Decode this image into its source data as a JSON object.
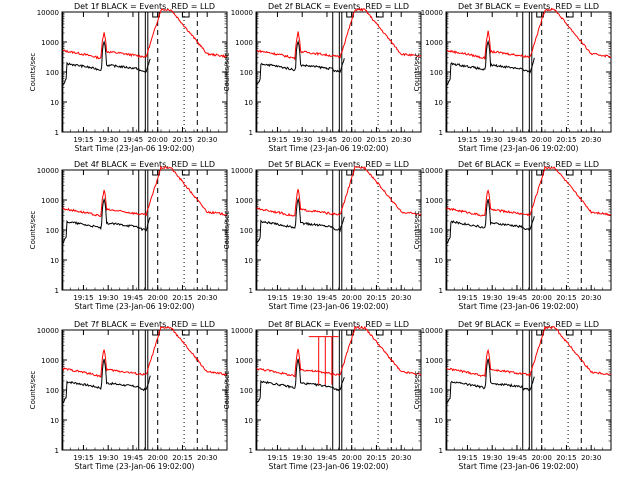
{
  "figure": {
    "ylabel": "Counts/sec",
    "xlabel": "Start Time (23-Jan-06 19:02:00)",
    "series_colors": {
      "events": "#000000",
      "lld": "#ff0000"
    }
  },
  "chart_data": [
    {
      "type": "line",
      "title": "Det 1f BLACK = Events, RED = LLD",
      "xlabel": "Start Time (23-Jan-06 19:02:00)",
      "ylabel": "Counts/sec",
      "x_ticks": [
        "19:15",
        "19:30",
        "19:45",
        "20:00",
        "20:15",
        "20:30"
      ],
      "xlim_min": [
        0,
        100
      ],
      "x_tick_min": [
        13,
        28,
        43,
        58,
        73,
        88
      ],
      "ylim": [
        1,
        10000
      ],
      "y_scale": "log",
      "y_ticks": [
        "1",
        "10",
        "100",
        "1000",
        "10000"
      ],
      "variant": "f"
    },
    {
      "type": "line",
      "title": "Det 2f BLACK = Events, RED = LLD",
      "xlabel": "Start Time (23-Jan-06 19:02:00)",
      "ylabel": "Counts/sec",
      "x_ticks": [
        "19:15",
        "19:30",
        "19:45",
        "20:00",
        "20:15",
        "20:30"
      ],
      "xlim_min": [
        0,
        100
      ],
      "x_tick_min": [
        13,
        28,
        43,
        58,
        73,
        88
      ],
      "ylim": [
        1,
        10000
      ],
      "y_scale": "log",
      "y_ticks": [
        "1",
        "10",
        "100",
        "1000",
        "10000"
      ],
      "variant": "f"
    },
    {
      "type": "line",
      "title": "Det 3f BLACK = Events, RED = LLD",
      "xlabel": "Start Time (23-Jan-06 19:02:00)",
      "ylabel": "Counts/sec",
      "x_ticks": [
        "19:15",
        "19:30",
        "19:45",
        "20:00",
        "20:15",
        "20:30"
      ],
      "xlim_min": [
        0,
        100
      ],
      "x_tick_min": [
        13,
        28,
        43,
        58,
        73,
        88
      ],
      "ylim": [
        1,
        10000
      ],
      "y_scale": "log",
      "y_ticks": [
        "1",
        "10",
        "100",
        "1000",
        "10000"
      ],
      "variant": "f"
    },
    {
      "type": "line",
      "title": "Det 4f BLACK = Events, RED = LLD",
      "xlabel": "Start Time (23-Jan-06 19:02:00)",
      "ylabel": "Counts/sec",
      "x_ticks": [
        "19:15",
        "19:30",
        "19:45",
        "20:00",
        "20:15",
        "20:30"
      ],
      "xlim_min": [
        0,
        100
      ],
      "x_tick_min": [
        13,
        28,
        43,
        58,
        73,
        88
      ],
      "ylim": [
        1,
        10000
      ],
      "y_scale": "log",
      "y_ticks": [
        "1",
        "10",
        "100",
        "1000",
        "10000"
      ],
      "variant": "f"
    },
    {
      "type": "line",
      "title": "Det 5f BLACK = Events, RED = LLD",
      "xlabel": "Start Time (23-Jan-06 19:02:00)",
      "ylabel": "Counts/sec",
      "x_ticks": [
        "19:15",
        "19:30",
        "19:45",
        "20:00",
        "20:15",
        "20:30"
      ],
      "xlim_min": [
        0,
        100
      ],
      "x_tick_min": [
        13,
        28,
        43,
        58,
        73,
        88
      ],
      "ylim": [
        1,
        10000
      ],
      "y_scale": "log",
      "y_ticks": [
        "1",
        "10",
        "100",
        "1000",
        "10000"
      ],
      "variant": "f"
    },
    {
      "type": "line",
      "title": "Det 6f BLACK = Events, RED = LLD",
      "xlabel": "Start Time (23-Jan-06 19:02:00)",
      "ylabel": "Counts/sec",
      "x_ticks": [
        "19:15",
        "19:30",
        "19:45",
        "20:00",
        "20:15",
        "20:30"
      ],
      "xlim_min": [
        0,
        100
      ],
      "x_tick_min": [
        13,
        28,
        43,
        58,
        73,
        88
      ],
      "ylim": [
        1,
        10000
      ],
      "y_scale": "log",
      "y_ticks": [
        "1",
        "10",
        "100",
        "1000",
        "10000"
      ],
      "variant": "f"
    },
    {
      "type": "line",
      "title": "Det 7f BLACK = Events, RED = LLD",
      "xlabel": "Start Time (23-Jan-06 19:02:00)",
      "ylabel": "Counts/sec",
      "x_ticks": [
        "19:15",
        "19:30",
        "19:45",
        "20:00",
        "20:15",
        "20:30"
      ],
      "xlim_min": [
        0,
        100
      ],
      "x_tick_min": [
        13,
        28,
        43,
        58,
        73,
        88
      ],
      "ylim": [
        1,
        10000
      ],
      "y_scale": "log",
      "y_ticks": [
        "1",
        "10",
        "100",
        "1000",
        "10000"
      ],
      "variant": "f"
    },
    {
      "type": "line",
      "title": "Det 8f BLACK = Events, RED = LLD",
      "xlabel": "Start Time (23-Jan-06 19:02:00)",
      "ylabel": "Counts/sec",
      "x_ticks": [
        "19:15",
        "19:30",
        "19:45",
        "20:00",
        "20:15",
        "20:30"
      ],
      "xlim_min": [
        0,
        100
      ],
      "x_tick_min": [
        13,
        28,
        43,
        58,
        73,
        88
      ],
      "ylim": [
        1,
        10000
      ],
      "y_scale": "log",
      "y_ticks": [
        "1",
        "10",
        "100",
        "1000",
        "10000"
      ],
      "variant": "8f"
    },
    {
      "type": "line",
      "title": "Det 9f BLACK = Events, RED = LLD",
      "xlabel": "Start Time (23-Jan-06 19:02:00)",
      "ylabel": "Counts/sec",
      "x_ticks": [
        "19:15",
        "19:30",
        "19:45",
        "20:00",
        "20:15",
        "20:30"
      ],
      "xlim_min": [
        0,
        100
      ],
      "x_tick_min": [
        13,
        28,
        43,
        58,
        73,
        88
      ],
      "ylim": [
        1,
        10000
      ],
      "y_scale": "log",
      "y_ticks": [
        "1",
        "10",
        "100",
        "1000",
        "10000"
      ],
      "variant": "f"
    }
  ]
}
